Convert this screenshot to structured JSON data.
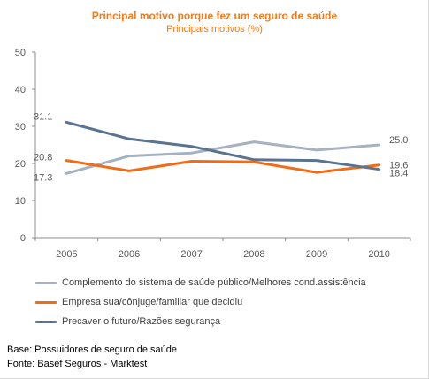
{
  "chart_data": {
    "type": "line",
    "title": "Principal motivo porque fez um seguro de saúde",
    "subtitle": "Principais motivos (%)",
    "categories": [
      "2005",
      "2006",
      "2007",
      "2008",
      "2009",
      "2010"
    ],
    "ylim": [
      0,
      50
    ],
    "yticks": [
      "0",
      "10",
      "20",
      "30",
      "40",
      "50"
    ],
    "grid": false,
    "legend_position": "bottom",
    "series": [
      {
        "name": "Complemento do sistema de saúde público/Melhores cond.assistência",
        "color": "#a6b1c2",
        "values": [
          17.3,
          22.0,
          22.8,
          25.8,
          23.6,
          25.0
        ],
        "labels": {
          "first": "17.3",
          "last": "25.0"
        }
      },
      {
        "name": "Empresa sua/cônjuge/familiar que decidiu",
        "color": "#f26c18",
        "values": [
          20.8,
          18.0,
          20.6,
          20.4,
          17.6,
          19.6
        ],
        "labels": {
          "first": "20.8",
          "last": "19.6"
        }
      },
      {
        "name": "Precaver o futuro/Razões segurança",
        "color": "#5a7391",
        "values": [
          31.1,
          26.6,
          24.6,
          21.0,
          20.8,
          18.4
        ],
        "labels": {
          "first": "31.1",
          "last": "18.4"
        }
      }
    ]
  },
  "footer": {
    "base": "Base: Possuidores de seguro de saúde",
    "source": "Fonte: Basef Seguros - Marktest"
  }
}
